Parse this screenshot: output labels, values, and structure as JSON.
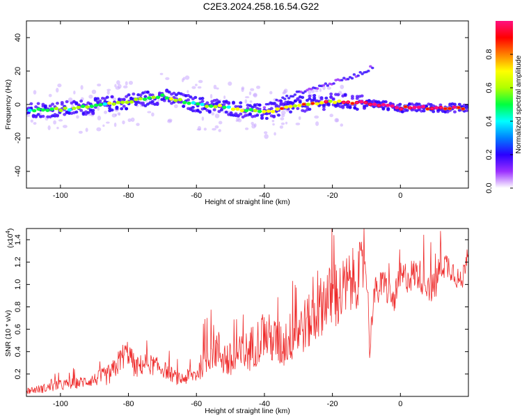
{
  "title": "C2E3.2024.258.16.54.G22",
  "chart_data": [
    {
      "type": "heatmap",
      "xlabel": "Height of straight line (km)",
      "ylabel": "Frequency (Hz)",
      "xlim": [
        -110,
        20
      ],
      "ylim": [
        -50,
        50
      ],
      "xticks": [
        -100,
        -80,
        -60,
        -40,
        -20,
        0
      ],
      "yticks": [
        -40,
        -20,
        0,
        20,
        40
      ],
      "colorbar": {
        "label": "Normalized spectral amplitude",
        "range": [
          0,
          1
        ],
        "ticks": [
          "0.0",
          "0.2",
          "0.4",
          "0.6",
          "0.8"
        ],
        "colors": [
          "#ffffff",
          "#9b30ff",
          "#2a00ff",
          "#0080ff",
          "#00ffff",
          "#00ff40",
          "#b0ff00",
          "#ffff00",
          "#ff8000",
          "#ff0000",
          "#ff1080"
        ]
      },
      "ridge": {
        "x": [
          -110,
          -100,
          -90,
          -80,
          -70,
          -60,
          -50,
          -40,
          -30,
          -20,
          -10,
          0,
          20
        ],
        "y": [
          -3,
          -3,
          -1,
          2,
          5,
          0,
          -2,
          -5,
          0,
          2,
          1,
          -2,
          -2
        ],
        "peak_amplitude": [
          0.45,
          0.5,
          0.5,
          0.6,
          0.65,
          0.55,
          0.55,
          0.6,
          0.65,
          0.75,
          0.85,
          0.9,
          0.9
        ]
      },
      "upper_branch": {
        "x": [
          -40,
          -35,
          -30,
          -25,
          -20,
          -15,
          -10,
          -8
        ],
        "y": [
          -1,
          3,
          7,
          10,
          13,
          16,
          20,
          23
        ]
      }
    },
    {
      "type": "line",
      "xlabel": "Height of straight line (km)",
      "ylabel": "SNR (10 * v/v)",
      "y_multiplier": "(x10",
      "y_multiplier_exp": "4",
      "y_multiplier_close": ")",
      "xlim": [
        -110,
        20
      ],
      "ylim": [
        0,
        1.5
      ],
      "xticks": [
        -100,
        -80,
        -60,
        -40,
        -20,
        0
      ],
      "yticks": [
        "0.2",
        "0.4",
        "0.6",
        "0.8",
        "1.0",
        "1.2",
        "1.4"
      ],
      "color": "#ee2a2a",
      "series": [
        {
          "x": [
            -110,
            -105,
            -100,
            -95,
            -90,
            -85,
            -82,
            -80,
            -78,
            -75,
            -70,
            -65,
            -60,
            -57,
            -55,
            -50,
            -45,
            -40,
            -35,
            -30,
            -25,
            -22,
            -20,
            -18,
            -15,
            -12,
            -10,
            -9,
            -8,
            -5,
            -2,
            0,
            5,
            10,
            12,
            15,
            18,
            20
          ],
          "y": [
            0.05,
            0.07,
            0.1,
            0.12,
            0.15,
            0.2,
            0.35,
            0.4,
            0.25,
            0.3,
            0.25,
            0.15,
            0.2,
            0.35,
            0.45,
            0.3,
            0.4,
            0.55,
            0.45,
            0.6,
            0.7,
            0.9,
            0.85,
            0.9,
            1.0,
            1.1,
            1.2,
            0.4,
            0.9,
            1.0,
            0.85,
            1.05,
            1.1,
            0.95,
            1.2,
            1.15,
            1.0,
            1.35
          ],
          "noise": [
            0.03,
            0.04,
            0.05,
            0.05,
            0.06,
            0.1,
            0.12,
            0.12,
            0.1,
            0.1,
            0.08,
            0.06,
            0.08,
            0.15,
            0.2,
            0.18,
            0.2,
            0.22,
            0.22,
            0.25,
            0.25,
            0.3,
            0.3,
            0.3,
            0.3,
            0.28,
            0.25,
            0.1,
            0.15,
            0.15,
            0.12,
            0.15,
            0.15,
            0.15,
            0.15,
            0.12,
            0.1,
            0.1
          ]
        }
      ]
    }
  ]
}
